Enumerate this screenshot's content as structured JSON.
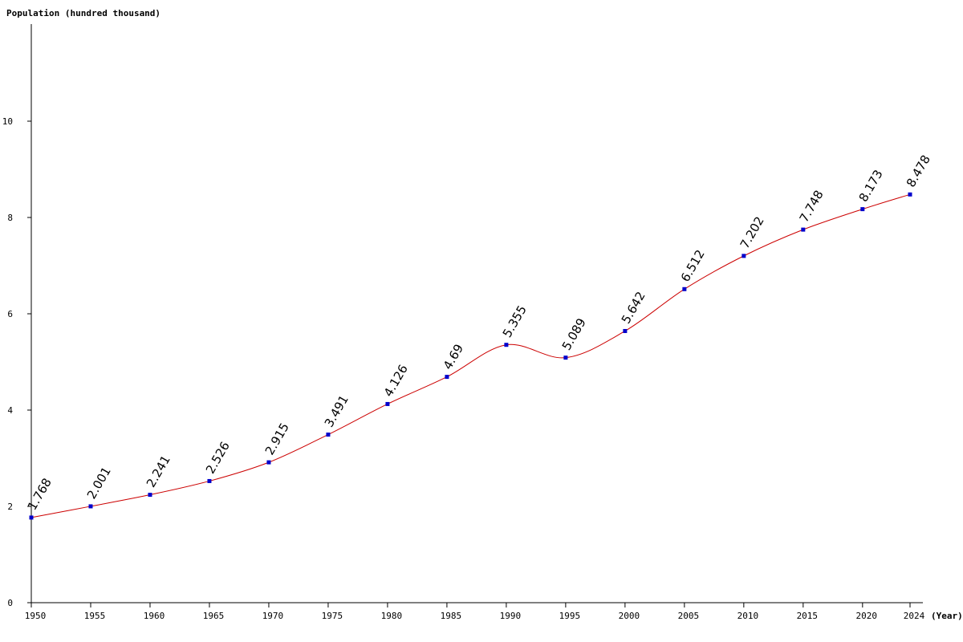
{
  "chart_data": {
    "type": "line",
    "ylabel": "Population (hundred thousand)",
    "xlabel": "(Year)",
    "x": [
      1950,
      1955,
      1960,
      1965,
      1970,
      1975,
      1980,
      1985,
      1990,
      1995,
      2000,
      2005,
      2010,
      2015,
      2020,
      2024
    ],
    "values": [
      1.768,
      2.001,
      2.241,
      2.526,
      2.915,
      3.491,
      4.126,
      4.69,
      5.355,
      5.089,
      5.642,
      6.512,
      7.202,
      7.748,
      8.173,
      8.478
    ],
    "data_labels": [
      "1.768",
      "2.001",
      "2.241",
      "2.526",
      "2.915",
      "3.491",
      "4.126",
      "4.69",
      "5.355",
      "5.089",
      "5.642",
      "6.512",
      "7.202",
      "7.748",
      "8.173",
      "8.478"
    ],
    "x_tick_labels": [
      "1950",
      "1955",
      "1960",
      "1965",
      "1970",
      "1975",
      "1980",
      "1985",
      "1990",
      "1995",
      "2000",
      "2005",
      "2010",
      "2015",
      "2020",
      "2024"
    ],
    "y_ticks": [
      0,
      2,
      4,
      6,
      8,
      10
    ],
    "y_tick_labels": [
      "0",
      "2",
      "4",
      "6",
      "8",
      "10"
    ],
    "ylim": [
      0,
      12
    ],
    "xlim": [
      1950,
      2024
    ],
    "grid": false,
    "legend": "none",
    "colors": {
      "line": "#cc0000",
      "marker": "#0000cc",
      "axis": "#000000"
    }
  }
}
